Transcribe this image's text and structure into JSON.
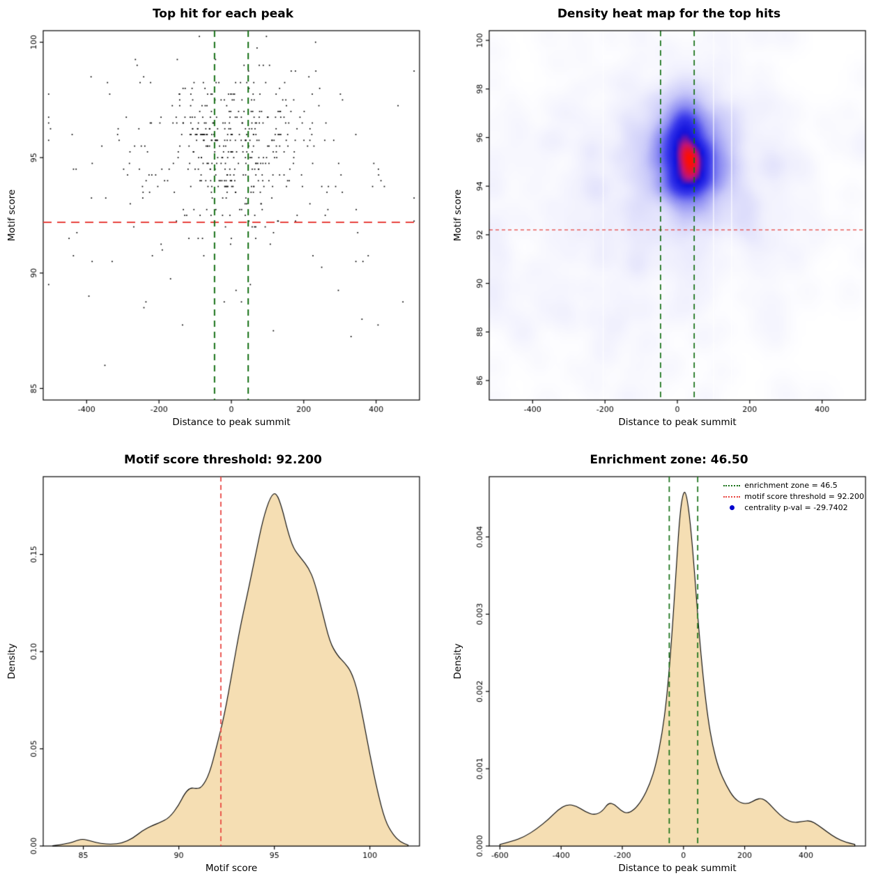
{
  "app": {
    "background": "#ffffff"
  },
  "analysis": {
    "motif_score_threshold": "92.200",
    "enrichment_zone_half_width": "46.50",
    "centrality_p_val": "-29.7402"
  },
  "chart_data": [
    {
      "type": "scatter",
      "title": "Top hit for each peak",
      "xlabel": "Distance to peak summit",
      "ylabel": "Motif score",
      "xlim": [
        -520,
        520
      ],
      "ylim": [
        84.5,
        100.5
      ],
      "xticks": {
        "values": [
          -400,
          -200,
          0,
          200,
          400
        ],
        "labels": [
          "-400",
          "-200",
          "0",
          "200",
          "400"
        ]
      },
      "yticks": {
        "values": [
          85,
          90,
          95,
          100
        ],
        "labels": [
          "85",
          "90",
          "95",
          "100"
        ]
      },
      "hline": {
        "y": 92.2,
        "color": "#e8413c",
        "dash": [
          12,
          8
        ],
        "width": 2
      },
      "vlines": {
        "x": [
          -46.5,
          46.5
        ],
        "color": "#157015",
        "dash": [
          9,
          7
        ],
        "width": 2
      },
      "point": {
        "color": "#000000",
        "size": 1.7
      },
      "generator": {
        "seed": 1337,
        "y_round": 0.25,
        "x_clamp": [
          -505,
          505
        ],
        "y_clamp": [
          84.8,
          100.3
        ],
        "clusters": [
          {
            "n": 290,
            "x_mean": 15,
            "x_sd": 90,
            "y_mean": 95.6,
            "y_sd": 1.5
          },
          {
            "n": 150,
            "x_mean": 0,
            "x_sd": 235,
            "y_mean": 94.9,
            "y_sd": 2.1
          },
          {
            "n": 70,
            "x_mean": -20,
            "x_sd": 280,
            "y_mean": 92.3,
            "y_sd": 3.1
          }
        ]
      }
    },
    {
      "type": "heatmap",
      "title": "Density heat map for the top hits",
      "xlabel": "Distance to peak summit",
      "ylabel": "Motif score",
      "xlim": [
        -520,
        520
      ],
      "ylim": [
        85.2,
        100.4
      ],
      "xticks": {
        "values": [
          -400,
          -200,
          0,
          200,
          400
        ],
        "labels": [
          "-400",
          "-200",
          "0",
          "200",
          "400"
        ]
      },
      "yticks": {
        "values": [
          86,
          88,
          90,
          92,
          94,
          96,
          98,
          100
        ],
        "labels": [
          "86",
          "88",
          "90",
          "92",
          "94",
          "96",
          "98",
          "100"
        ]
      },
      "hline": {
        "y": 92.2,
        "color": "#e8413c",
        "dash": [
          5,
          4
        ],
        "width": 1.2
      },
      "vlines": {
        "x": [
          -46.5,
          46.5
        ],
        "color": "#157015",
        "dash": [
          8,
          6
        ],
        "width": 1.7
      },
      "white_streaks": [
        -205,
        100,
        150
      ],
      "gamma": 0.62,
      "kernel_sigma_cells": 2.4,
      "grid": [
        100,
        92
      ],
      "colormap": [
        {
          "t": 0,
          "c": "#ffffff"
        },
        {
          "t": 0.15,
          "c": "#efeffd"
        },
        {
          "t": 0.35,
          "c": "#c9c9f9"
        },
        {
          "t": 0.55,
          "c": "#8a8af2"
        },
        {
          "t": 0.72,
          "c": "#3434ea"
        },
        {
          "t": 0.84,
          "c": "#1212dc"
        },
        {
          "t": 0.93,
          "c": "#c01378"
        },
        {
          "t": 1,
          "c": "#ff0f00"
        }
      ],
      "generator": {
        "seed": 90210,
        "x_clamp": [
          -515,
          515
        ],
        "y_clamp": [
          85.3,
          100.3
        ],
        "clusters": [
          {
            "n": 700,
            "x_mean": 25,
            "x_sd": 52,
            "y_mean": 95.4,
            "y_sd": 1.25
          },
          {
            "n": 300,
            "x_mean": 5,
            "x_sd": 150,
            "y_mean": 95.0,
            "y_sd": 2.1
          },
          {
            "n": 260,
            "x_mean": -60,
            "x_sd": 265,
            "y_mean": 93.6,
            "y_sd": 3.2
          },
          {
            "n": 120,
            "x_mean": -120,
            "x_sd": 300,
            "y_mean": 90.5,
            "y_sd": 3.4
          }
        ]
      }
    },
    {
      "type": "area",
      "title": "Motif score threshold: 92.200",
      "xlabel": "Motif score",
      "ylabel": "Density",
      "xlim": [
        82.9,
        102.6
      ],
      "ylim": [
        0,
        0.19
      ],
      "xticks": {
        "values": [
          85,
          90,
          95,
          100
        ],
        "labels": [
          "85",
          "90",
          "95",
          "100"
        ]
      },
      "yticks": {
        "values": [
          0,
          0.05,
          0.1,
          0.15
        ],
        "labels": [
          "0.00",
          "0.05",
          "0.10",
          "0.15"
        ]
      },
      "fill": "#f5deb3",
      "stroke": "#000000",
      "vlines": {
        "x": [
          92.2
        ],
        "color": "#e8413c",
        "dash": [
          7,
          5
        ],
        "width": 1.7
      },
      "points": [
        [
          83.4,
          0.0002
        ],
        [
          84.2,
          0.0012
        ],
        [
          84.7,
          0.003
        ],
        [
          85.0,
          0.0036
        ],
        [
          85.4,
          0.0025
        ],
        [
          85.9,
          0.0012
        ],
        [
          86.5,
          0.0009
        ],
        [
          87.0,
          0.0014
        ],
        [
          87.6,
          0.004
        ],
        [
          88.1,
          0.008
        ],
        [
          88.6,
          0.0105
        ],
        [
          89.0,
          0.012
        ],
        [
          89.5,
          0.0145
        ],
        [
          90.0,
          0.021
        ],
        [
          90.3,
          0.027
        ],
        [
          90.6,
          0.03
        ],
        [
          90.9,
          0.0295
        ],
        [
          91.2,
          0.03
        ],
        [
          91.6,
          0.037
        ],
        [
          92.0,
          0.052
        ],
        [
          92.4,
          0.068
        ],
        [
          92.8,
          0.09
        ],
        [
          93.2,
          0.112
        ],
        [
          93.6,
          0.13
        ],
        [
          94.0,
          0.149
        ],
        [
          94.4,
          0.168
        ],
        [
          94.8,
          0.18
        ],
        [
          95.1,
          0.182
        ],
        [
          95.4,
          0.174
        ],
        [
          95.7,
          0.162
        ],
        [
          96.0,
          0.153
        ],
        [
          96.4,
          0.148
        ],
        [
          96.8,
          0.143
        ],
        [
          97.1,
          0.136
        ],
        [
          97.5,
          0.121
        ],
        [
          97.9,
          0.105
        ],
        [
          98.3,
          0.098
        ],
        [
          98.7,
          0.094
        ],
        [
          99.0,
          0.09
        ],
        [
          99.3,
          0.082
        ],
        [
          99.6,
          0.068
        ],
        [
          100.0,
          0.047
        ],
        [
          100.4,
          0.028
        ],
        [
          100.8,
          0.013
        ],
        [
          101.2,
          0.006
        ],
        [
          101.6,
          0.002
        ],
        [
          102.0,
          0.0005
        ]
      ]
    },
    {
      "type": "area",
      "title": "Enrichment zone: 46.50",
      "xlabel": "Distance to peak summit",
      "ylabel": "Density",
      "xlim": [
        -635,
        595
      ],
      "ylim": [
        0,
        0.00478
      ],
      "xticks": {
        "values": [
          -600,
          -400,
          -200,
          0,
          200,
          400
        ],
        "labels": [
          "-600",
          "-400",
          "-200",
          "0",
          "200",
          "400"
        ]
      },
      "yticks": {
        "values": [
          0,
          0.001,
          0.002,
          0.003,
          0.004
        ],
        "labels": [
          "0.000",
          "0.001",
          "0.002",
          "0.003",
          "0.004"
        ]
      },
      "fill": "#f5deb3",
      "stroke": "#000000",
      "vlines": {
        "x": [
          -46.5,
          46.5
        ],
        "color": "#157015",
        "dash": [
          8,
          6
        ],
        "width": 1.7
      },
      "points": [
        [
          -600,
          2e-05
        ],
        [
          -560,
          6e-05
        ],
        [
          -520,
          0.00012
        ],
        [
          -480,
          0.00022
        ],
        [
          -440,
          0.00035
        ],
        [
          -410,
          0.00047
        ],
        [
          -380,
          0.00054
        ],
        [
          -350,
          0.00052
        ],
        [
          -320,
          0.00044
        ],
        [
          -290,
          0.0004
        ],
        [
          -265,
          0.00045
        ],
        [
          -245,
          0.00056
        ],
        [
          -225,
          0.00054
        ],
        [
          -205,
          0.00046
        ],
        [
          -185,
          0.00042
        ],
        [
          -160,
          0.00047
        ],
        [
          -135,
          0.0006
        ],
        [
          -110,
          0.0008
        ],
        [
          -90,
          0.00105
        ],
        [
          -70,
          0.00145
        ],
        [
          -55,
          0.0019
        ],
        [
          -40,
          0.0026
        ],
        [
          -25,
          0.0035
        ],
        [
          -12,
          0.0043
        ],
        [
          0,
          0.0046
        ],
        [
          10,
          0.00455
        ],
        [
          22,
          0.0042
        ],
        [
          35,
          0.0036
        ],
        [
          50,
          0.0028
        ],
        [
          65,
          0.00215
        ],
        [
          80,
          0.00165
        ],
        [
          95,
          0.0013
        ],
        [
          115,
          0.001
        ],
        [
          140,
          0.00078
        ],
        [
          165,
          0.00062
        ],
        [
          190,
          0.00055
        ],
        [
          215,
          0.00055
        ],
        [
          235,
          0.0006
        ],
        [
          255,
          0.00062
        ],
        [
          275,
          0.00057
        ],
        [
          300,
          0.00046
        ],
        [
          330,
          0.00035
        ],
        [
          360,
          0.0003
        ],
        [
          390,
          0.00032
        ],
        [
          415,
          0.00033
        ],
        [
          440,
          0.00027
        ],
        [
          470,
          0.00018
        ],
        [
          500,
          0.0001
        ],
        [
          530,
          5e-05
        ],
        [
          560,
          2e-05
        ]
      ],
      "legend": [
        {
          "label": "enrichment zone = 46.5",
          "color": "#157015",
          "marker": "dotted-line"
        },
        {
          "label": "motif score threshold = 92.200",
          "color": "#e8413c",
          "marker": "dotted-line"
        },
        {
          "label": "centrality p-val = -29.7402",
          "color": "#0000cd",
          "marker": "point"
        }
      ]
    }
  ]
}
